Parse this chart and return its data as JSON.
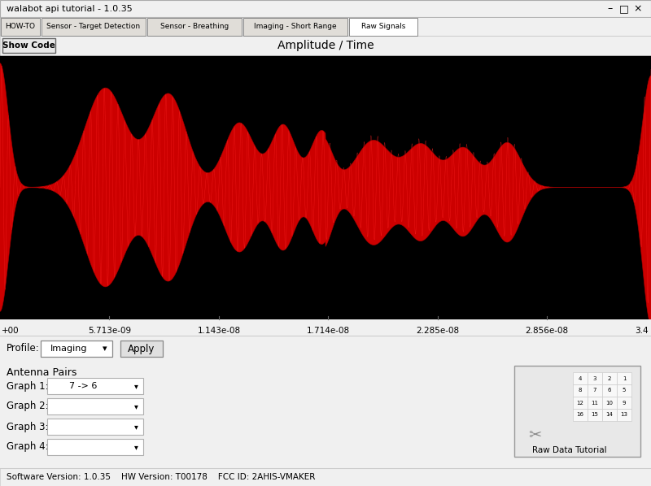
{
  "title_bar": "walabot api tutorial - 1.0.35",
  "tabs": [
    "HOW-TO",
    "Sensor - Target Detection",
    "Sensor - Breathing",
    "Imaging - Short Range",
    "Raw Signals"
  ],
  "active_tab": "Raw Signals",
  "chart_title": "Amplitude / Time",
  "show_code_btn": "Show Code",
  "profile_label": "Profile:",
  "profile_value": "Imaging",
  "apply_btn": "Apply",
  "antenna_pairs_label": "Antenna Pairs",
  "graph_labels": [
    "Graph 1:",
    "Graph 2:",
    "Graph 3:",
    "Graph 4:"
  ],
  "graph1_value": "7 -> 6",
  "raw_data_btn": "Raw Data Tutorial",
  "status_bar": "Software Version: 1.0.35    HW Version: T00178    FCC ID: 2AHIS-VMAKER",
  "plot_bg": "#000000",
  "signal_color": "#cc0000",
  "ui_bg": "#f0f0f0",
  "x_ticks": [
    "5.713e-09",
    "1.143e-08",
    "1.714e-08",
    "2.285e-08",
    "2.856e-08"
  ],
  "x_tick_vals": [
    5.713e-09,
    1.143e-08,
    1.714e-08,
    2.285e-08,
    2.856e-08
  ],
  "x_start_label": "+00",
  "x_end_label": "3.4",
  "n_points": 4000,
  "x_max": 3.4e-08,
  "signal_freq": 2800000000.0
}
